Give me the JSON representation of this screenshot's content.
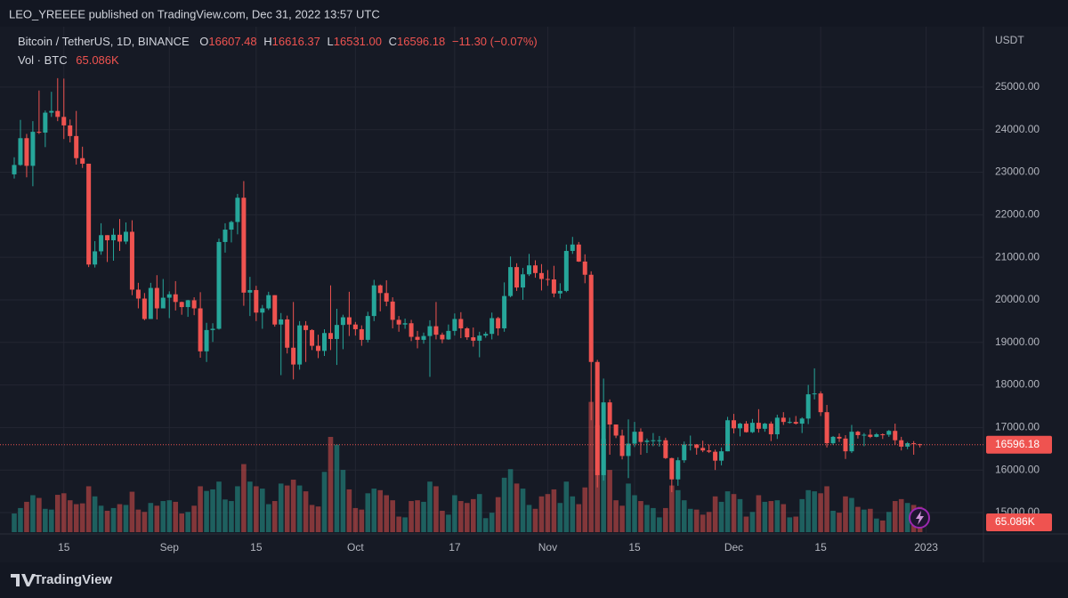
{
  "header": {
    "published": "LEO_YREEEE published on TradingView.com, Dec 31, 2022 13:57 UTC"
  },
  "footer": {
    "brand": "TradingView"
  },
  "chart_data": {
    "type": "candlestick",
    "legend": {
      "symbol": "Bitcoin / TetherUS, 1D, BINANCE",
      "open_label": "O",
      "high_label": "H",
      "low_label": "L",
      "close_label": "C",
      "low_value": "16531.00",
      "change": "−11.30 (−0.07%)",
      "volume_title": "Vol · BTC",
      "volume_value": "65.086K"
    },
    "price_unit": "USDT",
    "up_color": "#26a69a",
    "down_color": "#ef5350",
    "grid": true,
    "ylim": [
      14540,
      26420
    ],
    "yticks": [
      {
        "value": 15000,
        "label": "15000.00"
      },
      {
        "value": 16000,
        "label": "16000.00"
      },
      {
        "value": 17000,
        "label": "17000.00"
      },
      {
        "value": 18000,
        "label": "18000.00"
      },
      {
        "value": 19000,
        "label": "19000.00"
      },
      {
        "value": 20000,
        "label": "20000.00"
      },
      {
        "value": 21000,
        "label": "21000.00"
      },
      {
        "value": 22000,
        "label": "22000.00"
      },
      {
        "value": 23000,
        "label": "23000.00"
      },
      {
        "value": 24000,
        "label": "24000.00"
      },
      {
        "value": 25000,
        "label": "25000.00"
      }
    ],
    "xticks": [
      {
        "value": 8,
        "label": "15"
      },
      {
        "value": 25,
        "label": "Sep"
      },
      {
        "value": 39,
        "label": "15"
      },
      {
        "value": 55,
        "label": "Oct"
      },
      {
        "value": 71,
        "label": "17"
      },
      {
        "value": 86,
        "label": "Nov"
      },
      {
        "value": 100,
        "label": "15"
      },
      {
        "value": 116,
        "label": "Dec"
      },
      {
        "value": 130,
        "label": "15"
      },
      {
        "value": 147,
        "label": "2023"
      }
    ],
    "vlim": [
      0,
      1300000
    ],
    "open": [
      22950,
      23170,
      23800,
      23150,
      23950,
      23930,
      24400,
      24440,
      24300,
      24100,
      23850,
      23330,
      23200,
      20830,
      21140,
      21520,
      21400,
      21530,
      21370,
      21600,
      20240,
      20030,
      19550,
      20280,
      19800,
      20050,
      20130,
      19950,
      19830,
      19990,
      19800,
      18790,
      19290,
      19320,
      21360,
      21650,
      21830,
      22400,
      20170,
      20230,
      19700,
      19800,
      20110,
      19420,
      19540,
      18875,
      18480,
      19400,
      19290,
      18920,
      18800,
      19220,
      19080,
      19410,
      19590,
      19420,
      19310,
      19060,
      19620,
      20340,
      20160,
      19960,
      19530,
      19420,
      19450,
      19130,
      19060,
      19150,
      19380,
      19180,
      19070,
      19270,
      19550,
      19330,
      19120,
      19040,
      19160,
      19200,
      19570,
      19330,
      20090,
      20770,
      20290,
      20600,
      20810,
      20630,
      20490,
      20480,
      20150,
      20210,
      21150,
      21300,
      20900,
      20590,
      18540,
      15880,
      17590,
      17070,
      16810,
      16330,
      16620,
      16900,
      16660,
      16690,
      16700,
      16700,
      16280,
      15780,
      16230,
      16600,
      16600,
      16520,
      16460,
      16430,
      16220,
      16440,
      17170,
      16980,
      17090,
      16890,
      17110,
      16970,
      17090,
      16840,
      17230,
      17130,
      17130,
      17090,
      17210,
      17780,
      17800,
      17360,
      16630,
      16780,
      16740,
      16440,
      16900,
      16820,
      16830,
      16780,
      16840,
      16830,
      16920,
      16700,
      16550,
      16630,
      16607.48
    ],
    "high": [
      23350,
      24230,
      23900,
      24200,
      24920,
      24450,
      24890,
      25210,
      25200,
      24240,
      24440,
      23600,
      23200,
      21380,
      21800,
      21520,
      21680,
      21900,
      21820,
      21870,
      20400,
      20160,
      20400,
      20580,
      20490,
      20200,
      20440,
      19960,
      20000,
      20060,
      20180,
      19460,
      19450,
      21440,
      21800,
      21860,
      22490,
      22790,
      20540,
      20330,
      19880,
      20190,
      20110,
      19690,
      19630,
      19950,
      19500,
      19500,
      19310,
      19180,
      19310,
      20340,
      19790,
      19650,
      20190,
      19480,
      19400,
      19720,
      20470,
      20360,
      20460,
      20060,
      19620,
      19560,
      19530,
      19270,
      19230,
      19520,
      19950,
      19230,
      19420,
      19680,
      19710,
      19360,
      19350,
      19250,
      19250,
      19700,
      19600,
      20410,
      21020,
      20860,
      20750,
      21080,
      20930,
      20840,
      20700,
      20800,
      20390,
      21300,
      21480,
      21360,
      21070,
      20670,
      18590,
      18150,
      17660,
      17070,
      16950,
      17190,
      17130,
      16980,
      16740,
      16870,
      16800,
      16760,
      16290,
      16300,
      16670,
      16810,
      16610,
      16690,
      16600,
      16480,
      16530,
      17250,
      17320,
      17110,
      17150,
      17200,
      17430,
      17110,
      17140,
      17300,
      17360,
      17230,
      17270,
      17240,
      18000,
      18390,
      17850,
      17530,
      16800,
      16860,
      16820,
      17060,
      16920,
      16870,
      16960,
      16870,
      16860,
      16940,
      17090,
      16780,
      16660,
      16680,
      16616.37
    ],
    "low": [
      22850,
      23150,
      22880,
      22670,
      23900,
      23590,
      24300,
      24200,
      23780,
      23700,
      23180,
      23100,
      20770,
      20760,
      21060,
      20890,
      20920,
      21150,
      21310,
      20110,
      19800,
      19520,
      19550,
      19540,
      19800,
      19570,
      19750,
      19650,
      19600,
      19640,
      18640,
      18540,
      19010,
      19300,
      21110,
      21350,
      21540,
      19860,
      19620,
      19500,
      19320,
      19760,
      19370,
      18230,
      18740,
      18130,
      18360,
      18540,
      18820,
      18630,
      18680,
      18820,
      18470,
      18840,
      19150,
      19160,
      18920,
      19000,
      19500,
      19730,
      19850,
      19330,
      19250,
      19320,
      19030,
      18860,
      18970,
      18190,
      19070,
      18980,
      19060,
      19160,
      19100,
      19060,
      18900,
      18650,
      19110,
      19070,
      19160,
      19250,
      20060,
      20210,
      20000,
      20560,
      20520,
      20220,
      20330,
      20060,
      20030,
      20180,
      21080,
      20890,
      20390,
      17170,
      15590,
      15750,
      16360,
      16750,
      16250,
      15810,
      16540,
      16360,
      16400,
      16560,
      16550,
      16260,
      15480,
      15630,
      16170,
      16460,
      16360,
      16420,
      16400,
      16000,
      16110,
      16440,
      16860,
      16790,
      16880,
      16870,
      16880,
      16900,
      16680,
      16730,
      17060,
      17090,
      17070,
      16870,
      17080,
      17660,
      17270,
      16530,
      16590,
      16660,
      16260,
      16400,
      16740,
      16560,
      16750,
      16770,
      16730,
      16780,
      16590,
      16460,
      16490,
      16360,
      16531
    ],
    "close": [
      23170,
      23800,
      23150,
      23950,
      23930,
      24400,
      24440,
      24300,
      24100,
      23850,
      23330,
      23200,
      20830,
      21140,
      21520,
      21400,
      21530,
      21370,
      21600,
      20240,
      20030,
      19550,
      20280,
      19800,
      20050,
      20130,
      19950,
      19830,
      19990,
      19800,
      18790,
      19290,
      19320,
      21360,
      21650,
      21830,
      22400,
      20170,
      20230,
      19700,
      19800,
      20110,
      19420,
      19540,
      18875,
      18480,
      19400,
      19290,
      18920,
      18800,
      19220,
      19080,
      19410,
      19590,
      19420,
      19310,
      19060,
      19620,
      20340,
      20160,
      19960,
      19530,
      19420,
      19450,
      19130,
      19060,
      19150,
      19380,
      19180,
      19070,
      19270,
      19550,
      19330,
      19120,
      19040,
      19160,
      19200,
      19570,
      19330,
      20090,
      20770,
      20290,
      20600,
      20810,
      20630,
      20490,
      20480,
      20150,
      20210,
      21150,
      21300,
      20900,
      20590,
      18540,
      15880,
      17590,
      17070,
      16810,
      16330,
      16620,
      16900,
      16660,
      16690,
      16700,
      16700,
      16280,
      15780,
      16230,
      16600,
      16600,
      16520,
      16460,
      16430,
      16220,
      16440,
      17170,
      16980,
      17090,
      16890,
      17110,
      16970,
      17090,
      16840,
      17230,
      17130,
      17130,
      17090,
      17210,
      17780,
      17800,
      17360,
      16630,
      16780,
      16740,
      16440,
      16900,
      16820,
      16830,
      16780,
      16840,
      16830,
      16920,
      16700,
      16550,
      16630,
      16607.48,
      16596.18
    ],
    "volume": [
      48000,
      62000,
      78000,
      95000,
      88000,
      60000,
      58000,
      96000,
      100000,
      82000,
      72000,
      74000,
      118000,
      92000,
      68000,
      55000,
      62000,
      72000,
      70000,
      104000,
      58000,
      52000,
      75000,
      68000,
      80000,
      82000,
      78000,
      48000,
      52000,
      68000,
      118000,
      106000,
      110000,
      130000,
      84000,
      80000,
      118000,
      175000,
      130000,
      118000,
      112000,
      72000,
      80000,
      125000,
      120000,
      135000,
      120000,
      105000,
      70000,
      66000,
      155000,
      245000,
      225000,
      160000,
      110000,
      62000,
      58000,
      100000,
      112000,
      108000,
      95000,
      82000,
      40000,
      38000,
      80000,
      82000,
      78000,
      130000,
      118000,
      55000,
      45000,
      95000,
      80000,
      75000,
      85000,
      98000,
      36000,
      50000,
      90000,
      140000,
      162000,
      125000,
      112000,
      70000,
      60000,
      92000,
      98000,
      110000,
      75000,
      130000,
      92000,
      72000,
      115000,
      335000,
      275000,
      240000,
      160000,
      82000,
      68000,
      125000,
      95000,
      80000,
      70000,
      62000,
      38000,
      62000,
      120000,
      108000,
      82000,
      60000,
      58000,
      45000,
      52000,
      92000,
      78000,
      105000,
      98000,
      85000,
      40000,
      52000,
      95000,
      78000,
      80000,
      82000,
      72000,
      38000,
      40000,
      85000,
      108000,
      105000,
      100000,
      118000,
      55000,
      50000,
      92000,
      88000,
      65000,
      58000,
      60000,
      35000,
      30000,
      52000,
      80000,
      85000,
      75000,
      70000,
      65086
    ]
  }
}
